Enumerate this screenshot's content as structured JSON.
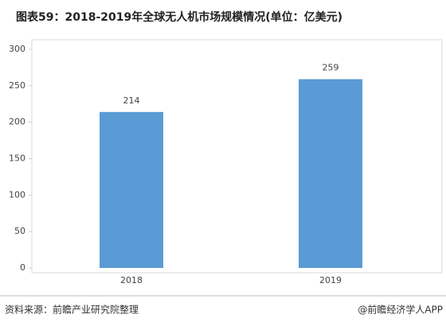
{
  "chart_data": {
    "type": "bar",
    "title": "图表59：2018-2019年全球无人机市场规模情况(单位：亿美元)",
    "categories": [
      "2018",
      "2019"
    ],
    "values": [
      214,
      259
    ],
    "color": "#5b9bd5",
    "ylim": [
      0,
      300
    ],
    "yticks": [
      0,
      50,
      100,
      150,
      200,
      250,
      300
    ],
    "grid": false
  },
  "footer": {
    "source": "资料来源：前瞻产业研究院整理",
    "credit": "@前瞻经济学人APP"
  }
}
